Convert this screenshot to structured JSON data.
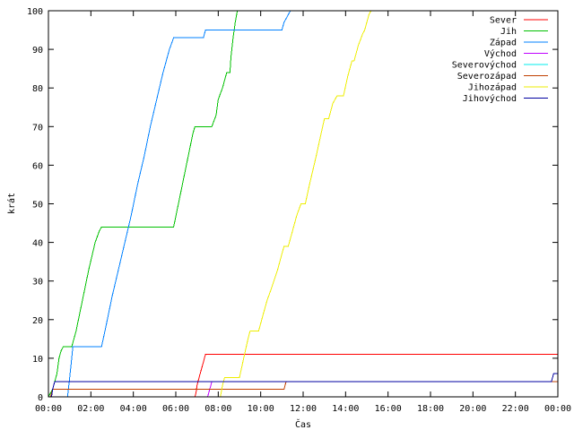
{
  "chart_data": {
    "type": "line",
    "title": "",
    "xlabel": "Čas",
    "ylabel": "krát",
    "xlim": [
      0,
      24
    ],
    "ylim": [
      0,
      100
    ],
    "grid": false,
    "legend_position": "top-right",
    "x_tick_labels": [
      "00:00",
      "02:00",
      "04:00",
      "06:00",
      "08:00",
      "10:00",
      "12:00",
      "14:00",
      "16:00",
      "18:00",
      "20:00",
      "22:00",
      "00:00"
    ],
    "y_ticks": [
      0,
      10,
      20,
      30,
      40,
      50,
      60,
      70,
      80,
      90,
      100
    ],
    "series": [
      {
        "name": "Sever",
        "color": "#ff0000",
        "points": [
          [
            0,
            0
          ],
          [
            6.9,
            0
          ],
          [
            6.95,
            1
          ],
          [
            7.0,
            3
          ],
          [
            7.1,
            5
          ],
          [
            7.2,
            7
          ],
          [
            7.3,
            9
          ],
          [
            7.35,
            10
          ],
          [
            7.4,
            11
          ],
          [
            24,
            11
          ]
        ]
      },
      {
        "name": "Jih",
        "color": "#00c000",
        "points": [
          [
            0,
            0
          ],
          [
            0.2,
            2
          ],
          [
            0.4,
            6
          ],
          [
            0.5,
            10
          ],
          [
            0.6,
            12
          ],
          [
            0.7,
            13
          ],
          [
            1.1,
            13
          ],
          [
            1.3,
            17
          ],
          [
            1.6,
            25
          ],
          [
            1.9,
            33
          ],
          [
            2.2,
            40
          ],
          [
            2.4,
            43
          ],
          [
            2.5,
            44
          ],
          [
            5.9,
            44
          ],
          [
            6.2,
            52
          ],
          [
            6.5,
            60
          ],
          [
            6.8,
            68
          ],
          [
            6.9,
            70
          ],
          [
            7.7,
            70
          ],
          [
            7.9,
            73
          ],
          [
            8.0,
            77
          ],
          [
            8.2,
            80
          ],
          [
            8.3,
            82
          ],
          [
            8.4,
            84
          ],
          [
            8.55,
            84
          ],
          [
            8.6,
            88
          ],
          [
            8.7,
            93
          ],
          [
            8.8,
            97
          ],
          [
            8.9,
            100
          ]
        ]
      },
      {
        "name": "Západ",
        "color": "#0080ff",
        "points": [
          [
            0,
            0
          ],
          [
            0.9,
            0
          ],
          [
            1.0,
            5
          ],
          [
            1.1,
            10
          ],
          [
            1.15,
            13
          ],
          [
            2.5,
            13
          ],
          [
            2.7,
            18
          ],
          [
            3.0,
            26
          ],
          [
            3.3,
            33
          ],
          [
            3.6,
            40
          ],
          [
            3.9,
            47
          ],
          [
            4.2,
            55
          ],
          [
            4.5,
            62
          ],
          [
            4.8,
            70
          ],
          [
            5.1,
            77
          ],
          [
            5.4,
            84
          ],
          [
            5.7,
            90
          ],
          [
            5.9,
            93
          ],
          [
            7.3,
            93
          ],
          [
            7.4,
            95
          ],
          [
            11.0,
            95
          ],
          [
            11.1,
            97
          ],
          [
            11.2,
            98
          ],
          [
            11.4,
            100
          ]
        ]
      },
      {
        "name": "Východ",
        "color": "#c000ff",
        "points": [
          [
            0,
            0
          ],
          [
            7.5,
            0
          ],
          [
            7.55,
            1
          ],
          [
            7.65,
            3
          ],
          [
            7.7,
            4
          ],
          [
            24,
            4
          ]
        ]
      },
      {
        "name": "Severovýchod",
        "color": "#00eeee",
        "points": [
          [
            0,
            0
          ],
          [
            0.1,
            0
          ],
          [
            0.2,
            2
          ],
          [
            0.3,
            4
          ],
          [
            24,
            4
          ]
        ]
      },
      {
        "name": "Severozápad",
        "color": "#c04000",
        "points": [
          [
            0,
            0
          ],
          [
            0.1,
            0
          ],
          [
            0.15,
            1
          ],
          [
            0.2,
            2
          ],
          [
            11.1,
            2
          ],
          [
            11.15,
            3
          ],
          [
            11.2,
            4
          ],
          [
            24,
            4
          ]
        ]
      },
      {
        "name": "Jihozápad",
        "color": "#eeee00",
        "points": [
          [
            0,
            0
          ],
          [
            8.1,
            0
          ],
          [
            8.2,
            3
          ],
          [
            8.3,
            5
          ],
          [
            9.0,
            5
          ],
          [
            9.2,
            10
          ],
          [
            9.4,
            15
          ],
          [
            9.5,
            17
          ],
          [
            9.9,
            17
          ],
          [
            10.1,
            21
          ],
          [
            10.3,
            25
          ],
          [
            10.5,
            28
          ],
          [
            10.8,
            33
          ],
          [
            11.0,
            37
          ],
          [
            11.1,
            39
          ],
          [
            11.3,
            39
          ],
          [
            11.5,
            43
          ],
          [
            11.7,
            47
          ],
          [
            11.9,
            50
          ],
          [
            12.1,
            50
          ],
          [
            12.3,
            55
          ],
          [
            12.6,
            62
          ],
          [
            12.8,
            67
          ],
          [
            13.0,
            72
          ],
          [
            13.2,
            72
          ],
          [
            13.4,
            76
          ],
          [
            13.6,
            78
          ],
          [
            13.9,
            78
          ],
          [
            14.1,
            83
          ],
          [
            14.3,
            87
          ],
          [
            14.4,
            87
          ],
          [
            14.6,
            91
          ],
          [
            14.8,
            94
          ],
          [
            14.9,
            95
          ],
          [
            15.0,
            97
          ],
          [
            15.1,
            99
          ],
          [
            15.2,
            100
          ]
        ]
      },
      {
        "name": "Jihovýchod",
        "color": "#0000a0",
        "points": [
          [
            0,
            0
          ],
          [
            0.15,
            0
          ],
          [
            0.2,
            2
          ],
          [
            0.3,
            4
          ],
          [
            23.7,
            4
          ],
          [
            23.75,
            5
          ],
          [
            23.8,
            6
          ],
          [
            24,
            6
          ]
        ]
      }
    ]
  }
}
